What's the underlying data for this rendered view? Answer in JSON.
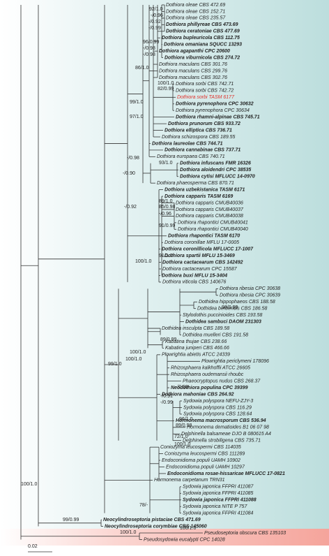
{
  "taxa": [
    "Dothiora oleae CBS 472.69",
    "Dothiora oleae CBS 152.71",
    "Dothiora oleae CBS 235.57",
    "Dothiora phillyreae CBS 473.69",
    "Dothiora ceratoniae CBS 477.69",
    "Dothiora bupleuricola CBS 112.75",
    "Dothiora omaniana SQUCC 13293",
    "Dothiora agapanthi CPC 20600",
    "Dothiora viburnicola CBS 274.72",
    "Dothiora maculans CBS 301.76",
    "Dothiora maculans CBS 299.76",
    "Dothiora maculans CBS 302.76",
    "Dothiora sorbi CBS 742.71",
    "Dothiora sorbi CBS 742.72",
    "Dothiora sorbi TASM 6177",
    "Dothiora pyrenophora CPC 30632",
    "Dothiora pyrenophora CPC 30634",
    "Dothiora rhamni-alpinae CBS 745.71",
    "Dothiora prunorum CBS 933.72",
    "Dothiora elliptica CBS 736.71",
    "Dothiora schizospora CBS 189.55",
    "Dothiora laureolae CBS 744.71",
    "Dothiora cannabinae CBS 737.71",
    "Dothiora europaea CBS 740.71",
    "Dothiora infuscans FMR 16326",
    "Dothiora aloidendri CPC 38535",
    "Dothiora cytisi MFLUCC 14-0970",
    "Dothiora phaeosperma CBS 870.71",
    "Dothiora uzbekistanica TASM 6171",
    "Dothiora capparis TASM 6169",
    "Dothiora capparis CMUB40036",
    "Dothiora capparis CMUB40037",
    "Dothiora capparis CMUB40038",
    "Dothiora rhapontici CMUB40041",
    "Dothiora rhapontici CMUB40040",
    "Dothiora rhapontici TASM 6170",
    "Dothiora coronillae MFLU 17-0005",
    "Dothiora coronillicola MFLUCC 17-1007",
    "Dothiora spartii MFLU 15-3469",
    "Dothiora cactacearum CBS 142492",
    "Dothiora cactacearum CPC 15587",
    "Dothiora buxi MFLU 15-3404",
    "Dothiora viticola CBS 140676",
    "Dothiora ribesia CPC 30638",
    "Dothiora ribesia CPC 30639",
    "Dothidea hippophaeos CBS 188.58",
    "Dothidea berberidis CBS 186.58",
    "Stylodothis puccinioides CBS 193.58",
    "Dothidea sambuci DAOM 231303",
    "Dothidea insculpta CBS 189.58",
    "Dothidea muelleri CBS 191.58",
    "Kabatina thujae CBS 238.66",
    "Kabatina juniperi CBS 466.66",
    "Plowrightia abietis ATCC 24339",
    "Plowrightia periclymeni 178096",
    "Rhizosphaera kalkhoffii ATCC 26605",
    "Rhizosphaera oudemansii rhoubc",
    "Phaeocryptopus nudus CBS 268.37",
    "Neodothiora populina CPC 39399",
    "Dothiora mahoniae CBS 264.92",
    "Sydowia polyspora NEFU-ZJY-3",
    "Sydowia polyspora CBS 116.29",
    "Sydowia polyspora CBS 128.64",
    "Hormonema macrosporum CBS 536.94",
    "Hormonema dematioides B1 06 07 98",
    "Delphinella balsameae DJO B 080615 A4",
    "Delphinella strobiligena CBS 735.71",
    "Coniozyma leucospermi CBS 114035",
    "Coniozyma leucospermi CBS 111289",
    "Endoconidioma populi UAMH 10902",
    "Endoconidioma populi UAMH 10297",
    "Endoconidioma rosae-hissaricae MFLUCC 17-0821",
    "Hormonema carpetanum TRN31",
    "Sydowia japonica FFPRI 411087",
    "Sydowia japonica FFPRI 411085",
    "Sydowia japonica FFPRI 411088",
    "Sydowia japonica NITE P 757",
    "Sydowia japonica FFPRI 411084",
    "Neocylindroseptoria pistaciae CBS 471.69",
    "Neocylindroseptoria corymbiae CBS 145060",
    "Pseudoseptoria obscura CBS 135103",
    "Pseudosydowia eucalypti CPC 14028"
  ],
  "support": [
    "92/1.0",
    "-/0.96",
    "-/0.92",
    "-/0.99",
    "96/0.99",
    "-/0.98",
    "-/0.98",
    "86/1.0",
    "100/1.0",
    "82/0.99",
    "99/1.0",
    "97/1.0",
    "-/0.98",
    "93/1.0",
    "-/0.90",
    "89/1.0",
    "-/0.92",
    "85/0.98",
    "-/0.96",
    "91/0.99",
    "91/1.0",
    "100/1.0",
    "98/0.99",
    "89/0.99",
    "100/1.0",
    "100/1.0",
    "99/1.0",
    "-/0.99",
    "-/0.91",
    "-/0.99",
    "96/1.0",
    "89/0.98",
    "72/1.0",
    "100/1.0",
    "100/1.0",
    "78/-",
    "100/1.0",
    "99/0.99",
    "100/1.0"
  ],
  "scale_bar": "0.02"
}
